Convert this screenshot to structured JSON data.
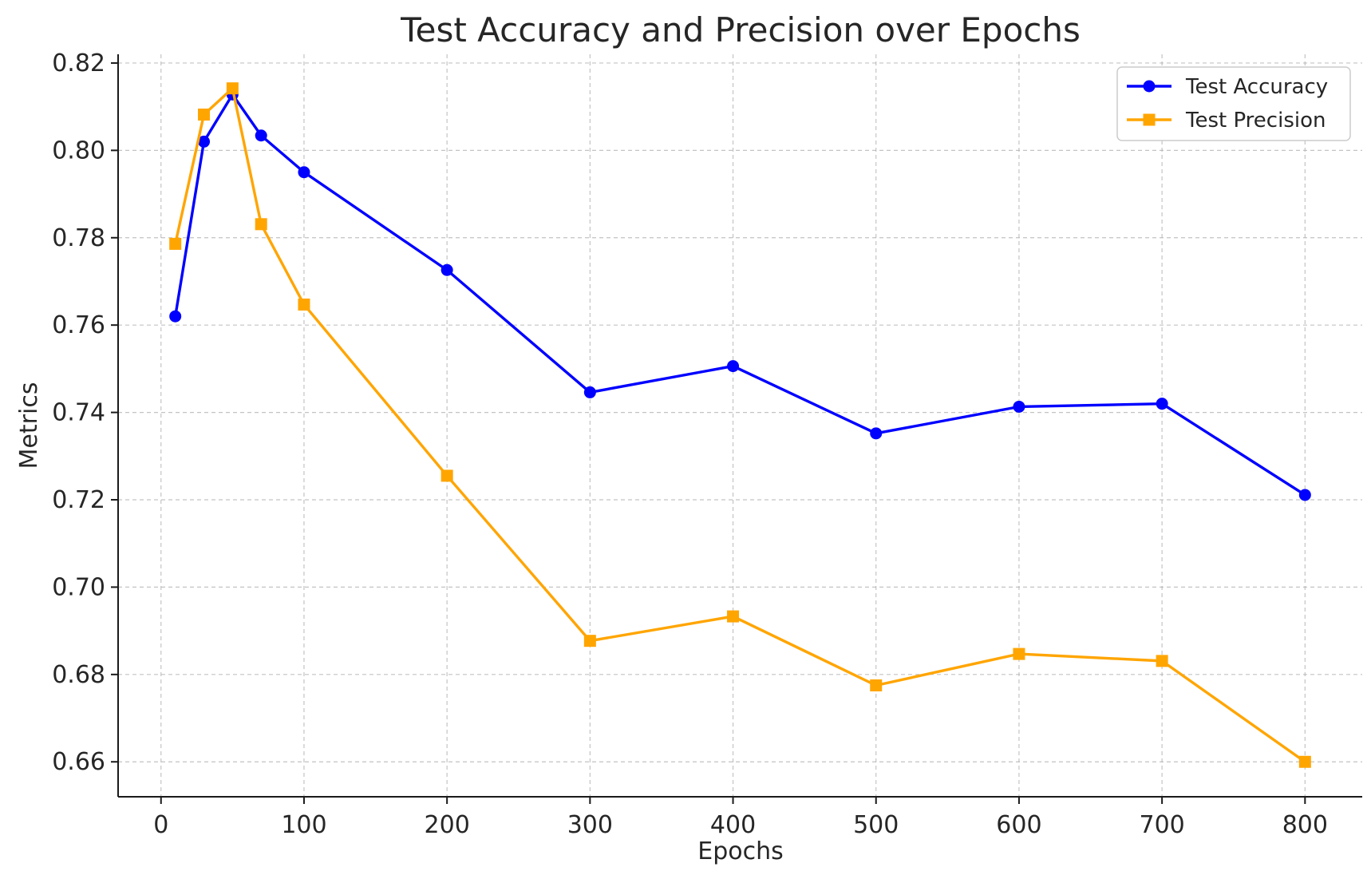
{
  "chart_data": {
    "type": "line",
    "title": "Test Accuracy and Precision over Epochs",
    "xlabel": "Epochs",
    "ylabel": "Metrics",
    "x": [
      10,
      30,
      50,
      70,
      100,
      200,
      300,
      400,
      500,
      600,
      700,
      800
    ],
    "xlim": [
      -30,
      840
    ],
    "ylim": [
      0.652,
      0.822
    ],
    "xticks": [
      0,
      100,
      200,
      300,
      400,
      500,
      600,
      700,
      800
    ],
    "xtick_labels": [
      "0",
      "100",
      "200",
      "300",
      "400",
      "500",
      "600",
      "700",
      "800"
    ],
    "yticks": [
      0.66,
      0.68,
      0.7,
      0.72,
      0.74,
      0.76,
      0.78,
      0.8,
      0.82
    ],
    "ytick_labels": [
      "0.66",
      "0.68",
      "0.70",
      "0.72",
      "0.74",
      "0.76",
      "0.78",
      "0.80",
      "0.82"
    ],
    "grid": true,
    "legend_position": "top-right",
    "series": [
      {
        "name": "Test Accuracy",
        "color": "#0000ff",
        "marker": "circle",
        "values": [
          0.762,
          0.802,
          0.8128,
          0.8034,
          0.795,
          0.7726,
          0.7446,
          0.7506,
          0.7352,
          0.7413,
          0.742,
          0.7211
        ]
      },
      {
        "name": "Test Precision",
        "color": "#ffa500",
        "marker": "square",
        "values": [
          0.7786,
          0.8082,
          0.8142,
          0.7831,
          0.7647,
          0.7255,
          0.6877,
          0.6933,
          0.6775,
          0.6847,
          0.6831,
          0.66
        ]
      }
    ]
  }
}
